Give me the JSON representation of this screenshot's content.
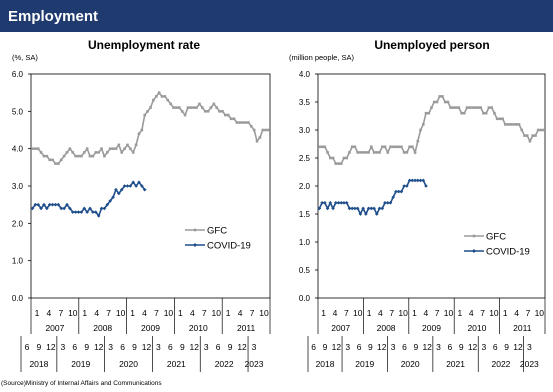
{
  "header": {
    "title": "Employment"
  },
  "source": "(Source)Ministry of Internal Affairs and Communications",
  "colors": {
    "gfc": "#9a9a9a",
    "covid": "#1f4e8c",
    "header": "#1f3a6e"
  },
  "chart_data": [
    {
      "type": "line",
      "title": "Unemployment rate",
      "unit": "(%, SA)",
      "ylim": [
        0,
        6
      ],
      "yticks": [
        "0.0",
        "1.0",
        "2.0",
        "3.0",
        "4.0",
        "5.0",
        "6.0"
      ],
      "grid": false,
      "legend_position": "right-center",
      "x_axis_gfc": {
        "months": [
          "1",
          "4",
          "7",
          "10",
          "1",
          "4",
          "7",
          "10",
          "1",
          "4",
          "7",
          "10",
          "1",
          "4",
          "7",
          "10",
          "1",
          "4",
          "7",
          "10"
        ],
        "years": [
          "2007",
          "2008",
          "2009",
          "2010",
          "2011"
        ]
      },
      "x_axis_covid": {
        "months": [
          "6",
          "9",
          "12",
          "3",
          "6",
          "9",
          "12",
          "3",
          "6",
          "9",
          "12",
          "3",
          "6",
          "9",
          "12",
          "3",
          "6",
          "9",
          "12",
          "3"
        ],
        "years": [
          "2018",
          "2019",
          "2020",
          "2021",
          "2022",
          "2023"
        ]
      },
      "series": [
        {
          "name": "GFC",
          "values": [
            4.0,
            4.0,
            4.0,
            3.9,
            3.8,
            3.8,
            3.7,
            3.7,
            3.6,
            3.6,
            3.7,
            3.8,
            3.9,
            4.0,
            3.9,
            3.8,
            3.8,
            3.8,
            3.9,
            4.0,
            3.8,
            3.8,
            3.9,
            3.9,
            4.0,
            3.8,
            3.9,
            4.0,
            4.0,
            4.0,
            4.1,
            3.9,
            4.0,
            4.1,
            4.0,
            3.9,
            4.1,
            4.4,
            4.5,
            4.9,
            5.0,
            5.1,
            5.3,
            5.4,
            5.5,
            5.4,
            5.4,
            5.3,
            5.2,
            5.1,
            5.1,
            5.1,
            5.0,
            4.9,
            5.1,
            5.1,
            5.1,
            5.1,
            5.2,
            5.1,
            5.0,
            5.0,
            5.1,
            5.2,
            5.1,
            5.0,
            5.0,
            4.9,
            4.9,
            4.8,
            4.8,
            4.7,
            4.7,
            4.7,
            4.7,
            4.7,
            4.6,
            4.5,
            4.2,
            4.3,
            4.5,
            4.5,
            4.5
          ]
        },
        {
          "name": "COVID-19",
          "values": [
            2.4,
            2.5,
            2.5,
            2.4,
            2.5,
            2.4,
            2.5,
            2.5,
            2.5,
            2.5,
            2.4,
            2.4,
            2.5,
            2.4,
            2.3,
            2.3,
            2.3,
            2.3,
            2.4,
            2.3,
            2.4,
            2.3,
            2.3,
            2.2,
            2.4,
            2.4,
            2.5,
            2.6,
            2.7,
            2.9,
            2.8,
            2.9,
            3.0,
            3.0,
            3.0,
            3.1,
            3.0,
            3.1,
            3.0,
            2.9
          ]
        }
      ]
    },
    {
      "type": "line",
      "title": "Unemployed person",
      "unit": "(million people, SA)",
      "ylim": [
        0,
        4
      ],
      "yticks": [
        "0.0",
        "0.5",
        "1.0",
        "1.5",
        "2.0",
        "2.5",
        "3.0",
        "3.5",
        "4.0"
      ],
      "grid": false,
      "legend_position": "right-center",
      "x_axis_gfc": {
        "months": [
          "1",
          "4",
          "7",
          "10",
          "1",
          "4",
          "7",
          "10",
          "1",
          "4",
          "7",
          "10",
          "1",
          "4",
          "7",
          "10",
          "1",
          "4",
          "7",
          "10"
        ],
        "years": [
          "2007",
          "2008",
          "2009",
          "2010",
          "2011"
        ]
      },
      "x_axis_covid": {
        "months": [
          "6",
          "9",
          "12",
          "3",
          "6",
          "9",
          "12",
          "3",
          "6",
          "9",
          "12",
          "3",
          "6",
          "9",
          "12",
          "3",
          "6",
          "9",
          "12",
          "3"
        ],
        "years": [
          "2018",
          "2019",
          "2020",
          "2021",
          "2022",
          "2023"
        ]
      },
      "series": [
        {
          "name": "GFC",
          "values": [
            2.7,
            2.7,
            2.7,
            2.6,
            2.5,
            2.5,
            2.4,
            2.4,
            2.4,
            2.5,
            2.5,
            2.6,
            2.7,
            2.7,
            2.6,
            2.6,
            2.6,
            2.6,
            2.6,
            2.7,
            2.6,
            2.6,
            2.6,
            2.7,
            2.7,
            2.6,
            2.7,
            2.7,
            2.7,
            2.7,
            2.7,
            2.6,
            2.6,
            2.7,
            2.7,
            2.6,
            2.8,
            3.0,
            3.1,
            3.3,
            3.3,
            3.4,
            3.5,
            3.5,
            3.6,
            3.6,
            3.5,
            3.5,
            3.4,
            3.4,
            3.4,
            3.4,
            3.3,
            3.3,
            3.4,
            3.4,
            3.4,
            3.4,
            3.4,
            3.4,
            3.3,
            3.3,
            3.4,
            3.4,
            3.3,
            3.2,
            3.2,
            3.2,
            3.1,
            3.1,
            3.1,
            3.1,
            3.1,
            3.1,
            3.0,
            2.9,
            2.9,
            2.8,
            2.9,
            2.9,
            3.0,
            3.0,
            3.0
          ]
        },
        {
          "name": "COVID-19",
          "values": [
            1.6,
            1.7,
            1.7,
            1.6,
            1.7,
            1.6,
            1.7,
            1.7,
            1.7,
            1.7,
            1.7,
            1.6,
            1.6,
            1.6,
            1.6,
            1.5,
            1.6,
            1.5,
            1.6,
            1.6,
            1.6,
            1.5,
            1.6,
            1.6,
            1.7,
            1.7,
            1.7,
            1.8,
            1.9,
            1.9,
            1.9,
            2.0,
            2.0,
            2.1,
            2.1,
            2.1,
            2.1,
            2.1,
            2.1,
            2.0
          ]
        }
      ]
    }
  ]
}
